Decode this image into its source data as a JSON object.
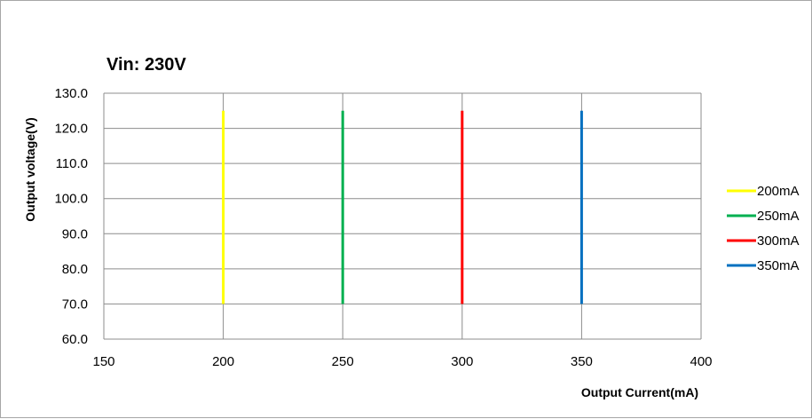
{
  "chart_data": {
    "type": "line",
    "title": "Vin: 230V",
    "xlabel": "Output Current(mA)",
    "ylabel": "Output voltage(V)",
    "xlim": [
      150,
      400
    ],
    "ylim": [
      60,
      130
    ],
    "xticks": [
      150,
      200,
      250,
      300,
      350,
      400
    ],
    "yticks": [
      60,
      70,
      80,
      90,
      100,
      110,
      120,
      130
    ],
    "ytick_format": "0.0",
    "grid": true,
    "legend_position": "right",
    "series": [
      {
        "name": "200mA",
        "color": "#ffff00",
        "x": [
          200,
          200
        ],
        "y": [
          70,
          125
        ]
      },
      {
        "name": "250mA",
        "color": "#00b050",
        "x": [
          250,
          250
        ],
        "y": [
          70,
          125
        ]
      },
      {
        "name": "300mA",
        "color": "#ff0000",
        "x": [
          300,
          300
        ],
        "y": [
          70,
          125
        ]
      },
      {
        "name": "350mA",
        "color": "#0070c0",
        "x": [
          350,
          350
        ],
        "y": [
          70,
          125
        ]
      }
    ]
  }
}
